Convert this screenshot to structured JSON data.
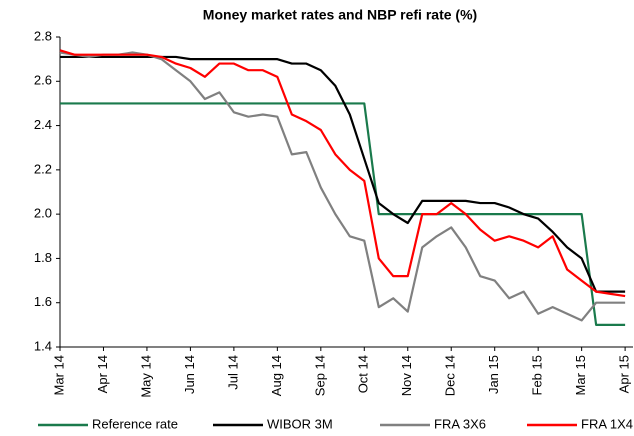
{
  "chart_data": {
    "type": "line",
    "title": "Money market rates and NBP refi rate (%)",
    "categories": [
      "Mar 14",
      null,
      null,
      "Apr 14",
      null,
      null,
      "May 14",
      null,
      null,
      "Jun 14",
      null,
      null,
      "Jul 14",
      null,
      null,
      "Aug 14",
      null,
      null,
      "Sep 14",
      null,
      null,
      "Oct 14",
      null,
      null,
      "Nov 14",
      null,
      null,
      "Dec 14",
      null,
      null,
      "Jan 15",
      null,
      null,
      "Feb 15",
      null,
      null,
      "Mar 15",
      null,
      null,
      "Apr 15"
    ],
    "series": [
      {
        "name": "Reference rate",
        "color": "#1a7a4c",
        "values": [
          2.5,
          2.5,
          2.5,
          2.5,
          2.5,
          2.5,
          2.5,
          2.5,
          2.5,
          2.5,
          2.5,
          2.5,
          2.5,
          2.5,
          2.5,
          2.5,
          2.5,
          2.5,
          2.5,
          2.5,
          2.5,
          2.5,
          2.0,
          2.0,
          2.0,
          2.0,
          2.0,
          2.0,
          2.0,
          2.0,
          2.0,
          2.0,
          2.0,
          2.0,
          2.0,
          2.0,
          2.0,
          1.5,
          1.5,
          1.5
        ]
      },
      {
        "name": "WIBOR 3M",
        "color": "#000000",
        "values": [
          2.71,
          2.71,
          2.71,
          2.71,
          2.71,
          2.71,
          2.71,
          2.71,
          2.71,
          2.7,
          2.7,
          2.7,
          2.7,
          2.7,
          2.7,
          2.7,
          2.68,
          2.68,
          2.65,
          2.58,
          2.45,
          2.25,
          2.05,
          2.0,
          1.96,
          2.06,
          2.06,
          2.06,
          2.06,
          2.05,
          2.05,
          2.03,
          2.0,
          1.98,
          1.92,
          1.85,
          1.8,
          1.65,
          1.65,
          1.65
        ]
      },
      {
        "name": "FRA 3X6",
        "color": "#808080",
        "values": [
          2.73,
          2.72,
          2.71,
          2.72,
          2.72,
          2.73,
          2.72,
          2.7,
          2.65,
          2.6,
          2.52,
          2.55,
          2.46,
          2.44,
          2.45,
          2.44,
          2.27,
          2.28,
          2.12,
          2.0,
          1.9,
          1.88,
          1.58,
          1.62,
          1.56,
          1.85,
          1.9,
          1.94,
          1.85,
          1.72,
          1.7,
          1.62,
          1.65,
          1.55,
          1.58,
          1.55,
          1.52,
          1.6,
          1.6,
          1.6
        ]
      },
      {
        "name": "FRA 1X4",
        "color": "#ff0000",
        "values": [
          2.74,
          2.72,
          2.72,
          2.72,
          2.72,
          2.72,
          2.72,
          2.71,
          2.68,
          2.66,
          2.62,
          2.68,
          2.68,
          2.65,
          2.65,
          2.62,
          2.45,
          2.42,
          2.38,
          2.27,
          2.2,
          2.15,
          1.8,
          1.72,
          1.72,
          2.0,
          2.0,
          2.05,
          2.0,
          1.93,
          1.88,
          1.9,
          1.88,
          1.85,
          1.9,
          1.75,
          1.7,
          1.65,
          1.64,
          1.63
        ]
      }
    ],
    "ylim": [
      1.4,
      2.8
    ],
    "yticks": [
      1.4,
      1.6,
      1.8,
      {
        "value": 2,
        "label": "2.0"
      },
      2.2,
      2.4,
      2.6,
      2.8
    ],
    "grid": false,
    "legend": "bottom"
  }
}
